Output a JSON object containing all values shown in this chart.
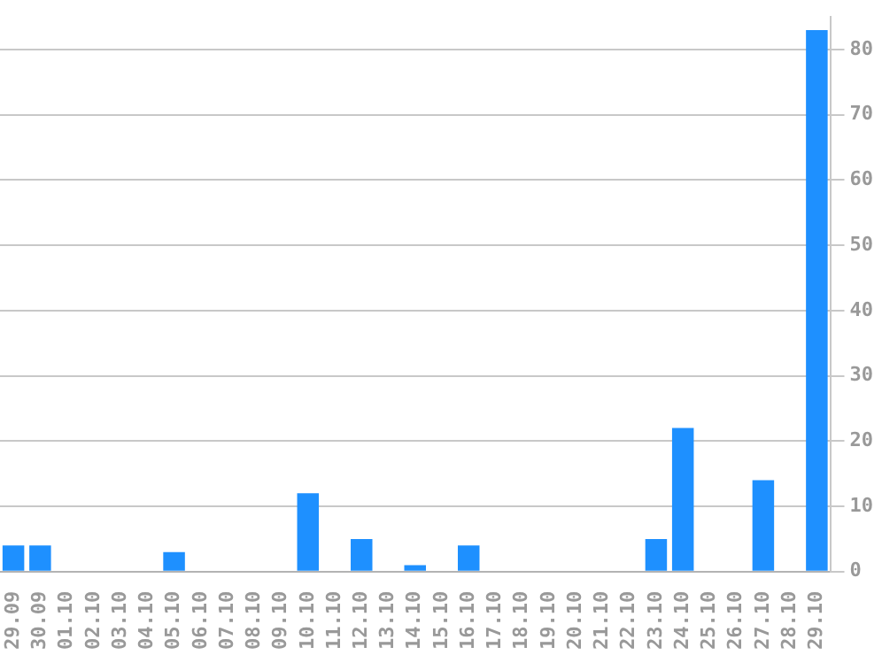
{
  "chart_data": {
    "type": "bar",
    "categories": [
      "29.09",
      "30.09",
      "01.10",
      "02.10",
      "03.10",
      "04.10",
      "05.10",
      "06.10",
      "07.10",
      "08.10",
      "09.10",
      "10.10",
      "11.10",
      "12.10",
      "13.10",
      "14.10",
      "15.10",
      "16.10",
      "17.10",
      "18.10",
      "19.10",
      "20.10",
      "21.10",
      "22.10",
      "23.10",
      "24.10",
      "25.10",
      "26.10",
      "27.10",
      "28.10",
      "29.10"
    ],
    "values": [
      4,
      4,
      0,
      0,
      0,
      0,
      3,
      0,
      0,
      0,
      0,
      12,
      0,
      5,
      0,
      1,
      0,
      4,
      0,
      0,
      0,
      0,
      0,
      0,
      5,
      22,
      0,
      0,
      14,
      0,
      83
    ],
    "color": "#1e90ff",
    "ylim": [
      0,
      85
    ],
    "yticks": [
      0,
      10,
      20,
      30,
      40,
      50,
      60,
      70,
      80
    ],
    "grid": "y",
    "legend": false
  }
}
